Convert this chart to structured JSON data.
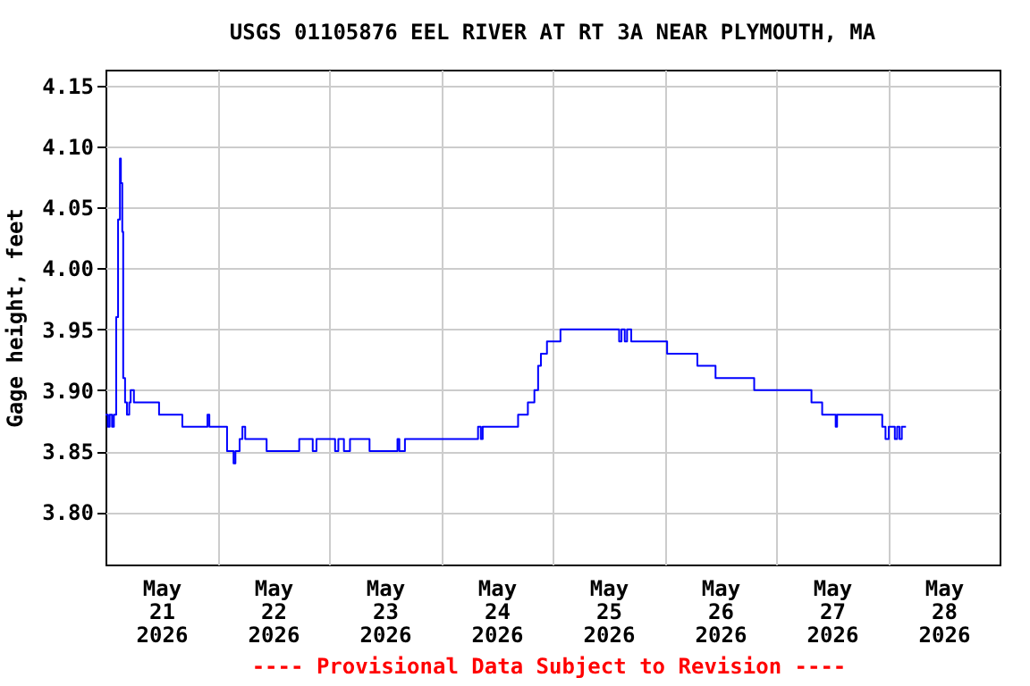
{
  "chart_data": {
    "type": "step",
    "title": "USGS 01105876 EEL RIVER AT RT 3A NEAR PLYMOUTH, MA",
    "ylabel": "Gage height, feet",
    "annotations": [
      "---- Provisional Data Subject to Revision ----"
    ],
    "x": [
      "2026-05-21T00:00",
      "2026-05-21T00:30",
      "2026-05-21T00:54",
      "2026-05-21T01:24",
      "2026-05-21T01:48",
      "2026-05-21T02:18",
      "2026-05-21T02:42",
      "2026-05-21T03:06",
      "2026-05-21T03:18",
      "2026-05-21T03:36",
      "2026-05-21T03:48",
      "2026-05-21T04:12",
      "2026-05-21T04:36",
      "2026-05-21T05:06",
      "2026-05-21T05:24",
      "2026-05-21T06:06",
      "2026-05-21T11:30",
      "2026-05-21T16:30",
      "2026-05-21T21:54",
      "2026-05-21T22:18",
      "2026-05-22T02:06",
      "2026-05-22T03:30",
      "2026-05-22T03:54",
      "2026-05-22T04:48",
      "2026-05-22T05:24",
      "2026-05-22T06:00",
      "2026-05-22T10:36",
      "2026-05-22T17:36",
      "2026-05-22T20:30",
      "2026-05-22T21:18",
      "2026-05-23T01:18",
      "2026-05-23T02:00",
      "2026-05-23T03:12",
      "2026-05-23T04:30",
      "2026-05-23T08:42",
      "2026-05-23T14:42",
      "2026-05-23T15:06",
      "2026-05-23T16:18",
      "2026-05-24T08:00",
      "2026-05-24T08:36",
      "2026-05-24T09:00",
      "2026-05-24T16:36",
      "2026-05-24T18:42",
      "2026-05-24T20:06",
      "2026-05-24T20:54",
      "2026-05-24T21:30",
      "2026-05-24T22:48",
      "2026-05-25T01:42",
      "2026-05-25T14:18",
      "2026-05-25T14:48",
      "2026-05-25T15:30",
      "2026-05-25T16:00",
      "2026-05-25T16:54",
      "2026-05-26T00:36",
      "2026-05-26T07:06",
      "2026-05-26T11:00",
      "2026-05-26T19:18",
      "2026-05-27T07:36",
      "2026-05-27T09:54",
      "2026-05-27T12:48",
      "2026-05-27T13:06",
      "2026-05-27T22:48",
      "2026-05-27T23:30",
      "2026-05-28T00:12",
      "2026-05-28T01:30",
      "2026-05-28T02:00",
      "2026-05-28T02:30",
      "2026-05-28T03:00",
      "2026-05-28T03:54"
    ],
    "series": [
      {
        "color": "#0000ff",
        "values": [
          3.88,
          3.87,
          3.88,
          3.87,
          3.88,
          3.96,
          4.04,
          4.09,
          4.07,
          4.03,
          3.91,
          3.89,
          3.88,
          3.89,
          3.9,
          3.89,
          3.88,
          3.87,
          3.88,
          3.87,
          3.85,
          3.84,
          3.85,
          3.86,
          3.87,
          3.86,
          3.85,
          3.86,
          3.85,
          3.86,
          3.85,
          3.86,
          3.85,
          3.86,
          3.85,
          3.86,
          3.85,
          3.86,
          3.87,
          3.86,
          3.87,
          3.88,
          3.89,
          3.9,
          3.92,
          3.93,
          3.94,
          3.95,
          3.94,
          3.95,
          3.94,
          3.95,
          3.94,
          3.93,
          3.92,
          3.91,
          3.9,
          3.89,
          3.88,
          3.87,
          3.88,
          3.87,
          3.86,
          3.87,
          3.86,
          3.87,
          3.86,
          3.87,
          3.87
        ]
      }
    ],
    "xlim": [
      "2026-05-21T00:00",
      "2026-05-29T00:00"
    ],
    "xticks": [
      {
        "value": "2026-05-21T12:00",
        "label": "May\n21\n2026"
      },
      {
        "value": "2026-05-22T00:00",
        "label": null
      },
      {
        "value": "2026-05-22T12:00",
        "label": "May\n22\n2026"
      },
      {
        "value": "2026-05-23T00:00",
        "label": null
      },
      {
        "value": "2026-05-23T12:00",
        "label": "May\n23\n2026"
      },
      {
        "value": "2026-05-24T00:00",
        "label": null
      },
      {
        "value": "2026-05-24T12:00",
        "label": "May\n24\n2026"
      },
      {
        "value": "2026-05-25T00:00",
        "label": null
      },
      {
        "value": "2026-05-25T12:00",
        "label": "May\n25\n2026"
      },
      {
        "value": "2026-05-26T00:00",
        "label": null
      },
      {
        "value": "2026-05-26T12:00",
        "label": "May\n26\n2026"
      },
      {
        "value": "2026-05-27T00:00",
        "label": null
      },
      {
        "value": "2026-05-27T12:00",
        "label": "May\n27\n2026"
      },
      {
        "value": "2026-05-28T00:00",
        "label": null
      },
      {
        "value": "2026-05-28T12:00",
        "label": "May\n28\n2026"
      }
    ],
    "ylim": [
      3.757,
      4.163
    ],
    "yticks": [
      {
        "value": 3.8,
        "label": "3.80"
      },
      {
        "value": 3.85,
        "label": "3.85"
      },
      {
        "value": 3.9,
        "label": "3.90"
      },
      {
        "value": 3.95,
        "label": "3.95"
      },
      {
        "value": 4.0,
        "label": "4.00"
      },
      {
        "value": 4.05,
        "label": "4.05"
      },
      {
        "value": 4.1,
        "label": "4.10"
      },
      {
        "value": 4.15,
        "label": "4.15"
      }
    ],
    "grid": true
  }
}
